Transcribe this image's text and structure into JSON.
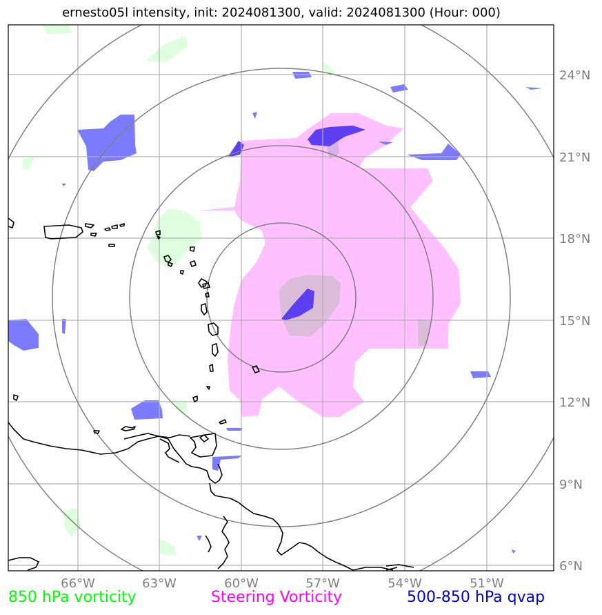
{
  "title": "ernesto05l intensity, init: 2024081300, valid: 2024081300 (Hour: 000)",
  "map": {
    "lat_labels": [
      "24°N",
      "21°N",
      "18°N",
      "15°N",
      "12°N",
      "9°N",
      "6°N"
    ],
    "lon_labels": [
      "66°W",
      "63°W",
      "60°W",
      "57°W",
      "54°W",
      "51°W"
    ],
    "extent": {
      "lon_min": -68.6,
      "lon_max": -48.6,
      "lat_min": 5.8,
      "lat_max": 25.8
    },
    "storm_center": {
      "lon": -58.5,
      "lat": 15.9
    },
    "range_rings_degrees": [
      2.7,
      5.5,
      8.3,
      11.1
    ],
    "grid": true
  },
  "legend": {
    "vorticity_850": {
      "label": "850 hPa vorticity",
      "color": "#00ff00"
    },
    "steering": {
      "label": "Steering Vorticity",
      "color": "#ff00ff"
    },
    "qvap": {
      "label": "500-850 hPa qvap",
      "color": "#0000cc"
    }
  },
  "colors": {
    "steering_fill": "#ffc0ff",
    "qvap_fill": "#7b7bff",
    "qvap_dark": "#5b3ff0",
    "vort_fill": "#ddffdd",
    "gridline": "#b0b0b0",
    "ring": "#808080",
    "coast": "#000000"
  }
}
